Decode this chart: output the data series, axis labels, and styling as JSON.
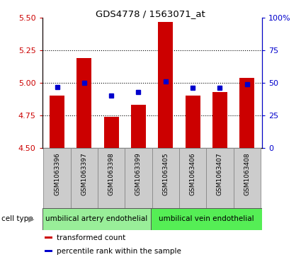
{
  "title": "GDS4778 / 1563071_at",
  "samples": [
    "GSM1063396",
    "GSM1063397",
    "GSM1063398",
    "GSM1063399",
    "GSM1063405",
    "GSM1063406",
    "GSM1063407",
    "GSM1063408"
  ],
  "transformed_count": [
    4.9,
    5.19,
    4.74,
    4.83,
    5.47,
    4.9,
    4.93,
    5.04
  ],
  "percentile_rank": [
    47,
    50,
    40,
    43,
    51,
    46,
    46,
    49
  ],
  "ylim_left": [
    4.5,
    5.5
  ],
  "ylim_right": [
    0,
    100
  ],
  "yticks_left": [
    4.5,
    4.75,
    5.0,
    5.25,
    5.5
  ],
  "yticks_right": [
    0,
    25,
    50,
    75,
    100
  ],
  "ytick_labels_right": [
    "0",
    "25",
    "50",
    "75",
    "100%"
  ],
  "bar_color": "#cc0000",
  "dot_color": "#0000cc",
  "bar_bottom": 4.5,
  "cell_type_groups": [
    {
      "label": "umbilical artery endothelial",
      "samples": [
        0,
        1,
        2,
        3
      ],
      "color": "#88ee88"
    },
    {
      "label": "umbilical vein endothelial",
      "samples": [
        4,
        5,
        6,
        7
      ],
      "color": "#55ee55"
    }
  ],
  "sample_box_color": "#cccccc",
  "cell_type_label": "cell type",
  "legend_items": [
    {
      "label": "transformed count",
      "color": "#cc0000"
    },
    {
      "label": "percentile rank within the sample",
      "color": "#0000cc"
    }
  ],
  "background_color": "#ffffff",
  "plot_bg_color": "#ffffff",
  "tick_label_color_left": "#cc0000",
  "tick_label_color_right": "#0000cc",
  "grid_yticks": [
    4.75,
    5.0,
    5.25
  ]
}
